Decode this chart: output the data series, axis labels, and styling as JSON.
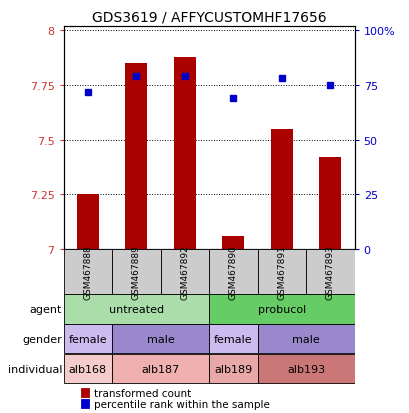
{
  "title": "GDS3619 / AFFYCUSTOMHF17656",
  "samples": [
    "GSM467888",
    "GSM467889",
    "GSM467892",
    "GSM467890",
    "GSM467891",
    "GSM467893"
  ],
  "red_values": [
    7.25,
    7.85,
    7.88,
    7.06,
    7.55,
    7.42
  ],
  "blue_values": [
    0.72,
    0.79,
    0.79,
    0.69,
    0.78,
    0.75
  ],
  "ylim": [
    7.0,
    8.0
  ],
  "yticks": [
    7.0,
    7.25,
    7.5,
    7.75,
    8.0
  ],
  "ytick_labels": [
    "7",
    "7.25",
    "7.5",
    "7.75",
    "8"
  ],
  "right_yticks": [
    0.0,
    0.25,
    0.5,
    0.75,
    1.0
  ],
  "right_ytick_labels": [
    "0",
    "25",
    "50",
    "75",
    "100%"
  ],
  "bar_color": "#aa0000",
  "dot_color": "#0000cc",
  "label_color_left": "#cc3333",
  "label_color_right": "#0000cc",
  "sample_box_color": "#cccccc",
  "agent_groups": [
    {
      "label": "untreated",
      "start": 0,
      "end": 3,
      "color": "#aaddaa"
    },
    {
      "label": "probucol",
      "start": 3,
      "end": 6,
      "color": "#66cc66"
    }
  ],
  "gender_groups": [
    {
      "label": "female",
      "start": 0,
      "end": 1,
      "color": "#ccbbee"
    },
    {
      "label": "male",
      "start": 1,
      "end": 3,
      "color": "#9988cc"
    },
    {
      "label": "female",
      "start": 3,
      "end": 4,
      "color": "#ccbbee"
    },
    {
      "label": "male",
      "start": 4,
      "end": 6,
      "color": "#9988cc"
    }
  ],
  "indiv_groups": [
    {
      "label": "alb168",
      "start": 0,
      "end": 1,
      "color": "#f5cccc"
    },
    {
      "label": "alb187",
      "start": 1,
      "end": 3,
      "color": "#f0b0b0"
    },
    {
      "label": "alb189",
      "start": 3,
      "end": 4,
      "color": "#e8a8a8"
    },
    {
      "label": "alb193",
      "start": 4,
      "end": 6,
      "color": "#cc7777"
    }
  ],
  "row_labels": [
    "agent",
    "gender",
    "individual"
  ]
}
